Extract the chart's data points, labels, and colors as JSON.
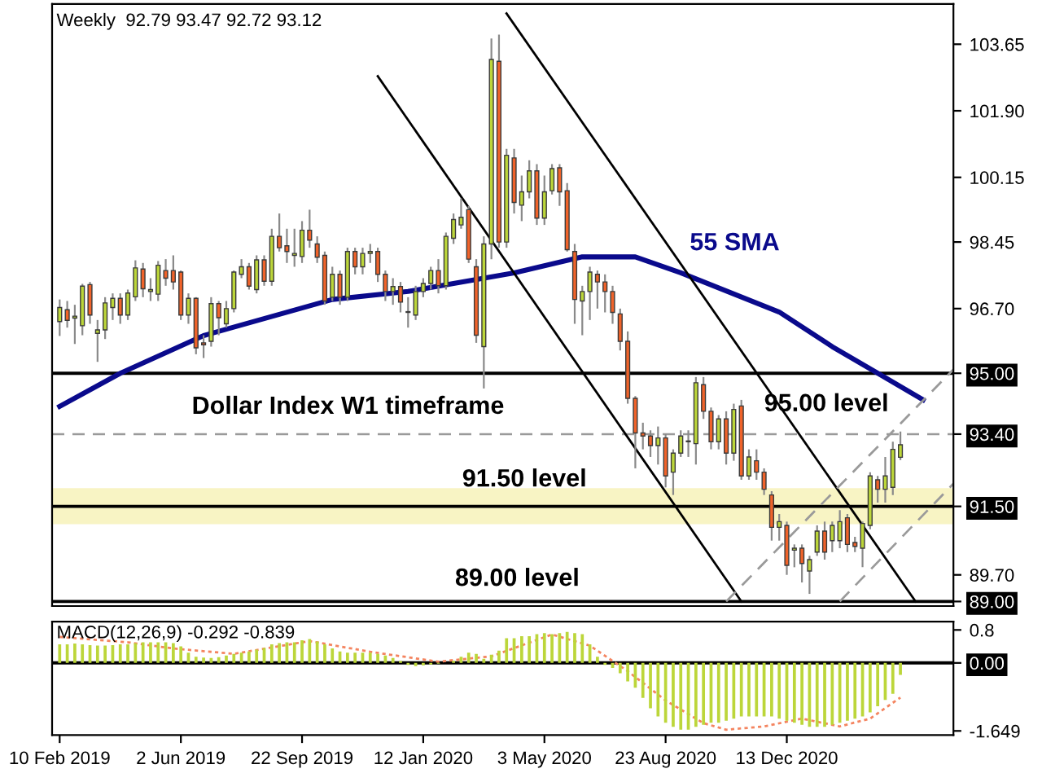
{
  "chart_data": [
    {
      "type": "candlestick",
      "xlim": [
        "2019-02-03",
        "2021-05-16"
      ],
      "ylim": [
        88.88,
        104.71
      ],
      "tick_labels": "y",
      "grid": false,
      "legend": false,
      "x": [
        "2019-02-10",
        "2019-02-17",
        "2019-02-24",
        "2019-03-03",
        "2019-03-10",
        "2019-03-17",
        "2019-03-24",
        "2019-03-31",
        "2019-04-07",
        "2019-04-14",
        "2019-04-21",
        "2019-04-28",
        "2019-05-05",
        "2019-05-12",
        "2019-05-19",
        "2019-05-26",
        "2019-06-02",
        "2019-06-09",
        "2019-06-16",
        "2019-06-23",
        "2019-06-30",
        "2019-07-07",
        "2019-07-14",
        "2019-07-21",
        "2019-07-28",
        "2019-08-04",
        "2019-08-11",
        "2019-08-18",
        "2019-08-25",
        "2019-09-01",
        "2019-09-08",
        "2019-09-15",
        "2019-09-22",
        "2019-09-29",
        "2019-10-06",
        "2019-10-13",
        "2019-10-20",
        "2019-10-27",
        "2019-11-03",
        "2019-11-10",
        "2019-11-17",
        "2019-11-24",
        "2019-12-01",
        "2019-12-08",
        "2019-12-15",
        "2019-12-22",
        "2019-12-29",
        "2020-01-05",
        "2020-01-12",
        "2020-01-19",
        "2020-01-26",
        "2020-02-02",
        "2020-02-09",
        "2020-02-16",
        "2020-02-23",
        "2020-03-01",
        "2020-03-08",
        "2020-03-15",
        "2020-03-22",
        "2020-03-29",
        "2020-04-05",
        "2020-04-12",
        "2020-04-19",
        "2020-04-26",
        "2020-05-03",
        "2020-05-10",
        "2020-05-17",
        "2020-05-24",
        "2020-05-31",
        "2020-06-07",
        "2020-06-14",
        "2020-06-21",
        "2020-06-28",
        "2020-07-05",
        "2020-07-12",
        "2020-07-19",
        "2020-07-26",
        "2020-08-02",
        "2020-08-09",
        "2020-08-16",
        "2020-08-23",
        "2020-08-30",
        "2020-09-06",
        "2020-09-13",
        "2020-09-20",
        "2020-09-27",
        "2020-10-04",
        "2020-10-11",
        "2020-10-18",
        "2020-10-25",
        "2020-11-01",
        "2020-11-08",
        "2020-11-15",
        "2020-11-22",
        "2020-11-29",
        "2020-12-06",
        "2020-12-13",
        "2020-12-20",
        "2020-12-27",
        "2021-01-03",
        "2021-01-10",
        "2021-01-17",
        "2021-01-24",
        "2021-01-31",
        "2021-02-07",
        "2021-02-14",
        "2021-02-21",
        "2021-02-28",
        "2021-03-07",
        "2021-03-14",
        "2021-03-21",
        "2021-03-28"
      ],
      "ohlc": [
        [
          96.36,
          96.94,
          95.98,
          96.73
        ],
        [
          96.67,
          96.9,
          96.2,
          96.39
        ],
        [
          96.45,
          96.8,
          95.77,
          96.5
        ],
        [
          96.25,
          97.35,
          96.0,
          97.29
        ],
        [
          97.33,
          97.4,
          96.3,
          96.53
        ],
        [
          96.05,
          96.4,
          95.3,
          96.14
        ],
        [
          96.14,
          97.0,
          95.9,
          96.85
        ],
        [
          96.73,
          97.1,
          96.4,
          96.97
        ],
        [
          96.97,
          97.1,
          96.3,
          96.53
        ],
        [
          96.53,
          97.2,
          96.4,
          97.11
        ],
        [
          97.01,
          97.97,
          96.9,
          97.77
        ],
        [
          97.74,
          97.9,
          97.0,
          97.22
        ],
        [
          97.15,
          97.5,
          96.9,
          97.2
        ],
        [
          97.08,
          97.95,
          96.9,
          97.84
        ],
        [
          97.7,
          98.0,
          97.3,
          97.5
        ],
        [
          97.7,
          98.1,
          97.2,
          97.4
        ],
        [
          97.66,
          97.7,
          96.4,
          96.53
        ],
        [
          96.53,
          97.1,
          96.3,
          96.97
        ],
        [
          96.97,
          97.0,
          95.5,
          95.67
        ],
        [
          95.8,
          96.0,
          95.4,
          95.75
        ],
        [
          95.84,
          97.0,
          95.7,
          96.83
        ],
        [
          96.83,
          96.9,
          96.0,
          96.46
        ],
        [
          96.3,
          96.9,
          96.2,
          96.7
        ],
        [
          96.7,
          97.7,
          96.6,
          97.66
        ],
        [
          97.6,
          98.0,
          97.5,
          97.8
        ],
        [
          97.8,
          97.9,
          97.2,
          97.29
        ],
        [
          97.2,
          98.1,
          97.1,
          97.98
        ],
        [
          97.98,
          98.1,
          97.3,
          97.42
        ],
        [
          97.42,
          98.8,
          97.3,
          98.6
        ],
        [
          98.6,
          99.2,
          98.2,
          98.3
        ],
        [
          98.35,
          98.8,
          97.9,
          98.2
        ],
        [
          98.1,
          98.8,
          97.8,
          98.15
        ],
        [
          98.07,
          99.0,
          97.9,
          98.76
        ],
        [
          98.76,
          99.3,
          98.3,
          98.5
        ],
        [
          98.4,
          98.6,
          97.9,
          98.05
        ],
        [
          98.1,
          98.2,
          96.8,
          96.9
        ],
        [
          97.0,
          97.8,
          96.9,
          97.6
        ],
        [
          97.6,
          97.7,
          96.8,
          97.0
        ],
        [
          97.0,
          98.3,
          96.9,
          98.2
        ],
        [
          98.2,
          98.3,
          97.6,
          97.8
        ],
        [
          97.8,
          98.3,
          97.6,
          98.15
        ],
        [
          98.15,
          98.4,
          97.9,
          98.2
        ],
        [
          98.2,
          98.3,
          97.4,
          97.6
        ],
        [
          97.6,
          97.7,
          96.9,
          97.15
        ],
        [
          97.15,
          97.5,
          96.8,
          97.28
        ],
        [
          97.28,
          97.4,
          96.6,
          96.87
        ],
        [
          96.6,
          97.0,
          96.2,
          96.62
        ],
        [
          96.53,
          97.3,
          96.4,
          97.15
        ],
        [
          97.15,
          97.5,
          97.0,
          97.36
        ],
        [
          97.36,
          97.8,
          97.2,
          97.7
        ],
        [
          97.7,
          98.0,
          97.1,
          97.3
        ],
        [
          97.3,
          98.7,
          97.2,
          98.6
        ],
        [
          98.55,
          99.2,
          98.4,
          99.04
        ],
        [
          98.9,
          99.6,
          98.8,
          99.1
        ],
        [
          99.3,
          99.4,
          97.9,
          98.0
        ],
        [
          97.8,
          98.0,
          95.8,
          96.0
        ],
        [
          95.7,
          98.6,
          94.6,
          98.4
        ],
        [
          98.4,
          103.8,
          98.0,
          103.25
        ],
        [
          103.2,
          103.9,
          98.3,
          98.45
        ],
        [
          98.45,
          100.9,
          98.3,
          100.73
        ],
        [
          100.66,
          100.9,
          99.2,
          99.49
        ],
        [
          99.42,
          100.2,
          99.0,
          99.77
        ],
        [
          99.77,
          100.6,
          99.6,
          100.32
        ],
        [
          100.32,
          100.5,
          98.9,
          99.08
        ],
        [
          99.08,
          100.2,
          98.9,
          99.77
        ],
        [
          99.8,
          100.5,
          99.7,
          100.38
        ],
        [
          100.4,
          100.5,
          99.4,
          99.77
        ],
        [
          99.8,
          100.0,
          98.2,
          98.25
        ],
        [
          98.2,
          98.4,
          96.3,
          96.94
        ],
        [
          96.9,
          97.3,
          96.0,
          97.15
        ],
        [
          97.15,
          97.8,
          96.4,
          97.66
        ],
        [
          97.6,
          97.7,
          96.7,
          97.4
        ],
        [
          97.4,
          97.6,
          96.6,
          97.15
        ],
        [
          97.15,
          97.3,
          96.3,
          96.6
        ],
        [
          96.56,
          96.7,
          95.6,
          95.84
        ],
        [
          95.84,
          96.1,
          94.2,
          94.34
        ],
        [
          94.34,
          94.4,
          92.5,
          93.43
        ],
        [
          93.43,
          93.7,
          93.0,
          93.35
        ],
        [
          93.35,
          93.5,
          92.8,
          93.1
        ],
        [
          93.1,
          93.6,
          92.6,
          93.3
        ],
        [
          93.3,
          93.4,
          92.0,
          92.3
        ],
        [
          92.4,
          93.0,
          91.8,
          92.9
        ],
        [
          92.9,
          93.5,
          92.8,
          93.35
        ],
        [
          93.2,
          93.5,
          92.8,
          93.22
        ],
        [
          93.15,
          94.9,
          92.6,
          94.75
        ],
        [
          94.7,
          94.9,
          93.8,
          94.0
        ],
        [
          94.0,
          94.1,
          93.0,
          93.2
        ],
        [
          93.2,
          93.9,
          93.0,
          93.8
        ],
        [
          93.8,
          94.0,
          92.6,
          92.9
        ],
        [
          92.9,
          94.2,
          92.7,
          94.05
        ],
        [
          94.14,
          94.3,
          92.2,
          92.3
        ],
        [
          92.3,
          93.0,
          92.2,
          92.8
        ],
        [
          92.7,
          93.0,
          92.2,
          92.4
        ],
        [
          92.4,
          92.5,
          91.8,
          91.95
        ],
        [
          91.8,
          91.9,
          90.6,
          90.95
        ],
        [
          90.95,
          91.3,
          90.6,
          91.1
        ],
        [
          91.0,
          91.1,
          89.7,
          89.95
        ],
        [
          90.35,
          90.5,
          89.9,
          90.4
        ],
        [
          90.4,
          90.5,
          89.5,
          90.0
        ],
        [
          89.8,
          90.2,
          89.2,
          90.1
        ],
        [
          90.3,
          91.0,
          90.2,
          90.85
        ],
        [
          90.85,
          91.1,
          90.1,
          90.3
        ],
        [
          90.6,
          91.1,
          90.3,
          91.0
        ],
        [
          90.6,
          91.4,
          90.4,
          91.1
        ],
        [
          91.2,
          91.3,
          90.3,
          90.5
        ],
        [
          90.55,
          90.7,
          90.3,
          90.45
        ],
        [
          90.4,
          91.1,
          89.9,
          91.05
        ],
        [
          91.0,
          92.4,
          90.9,
          92.3
        ],
        [
          92.2,
          92.3,
          91.6,
          91.95
        ],
        [
          91.95,
          92.8,
          91.6,
          92.3
        ],
        [
          92.0,
          93.2,
          91.8,
          93.0
        ],
        [
          92.79,
          93.47,
          92.72,
          93.12
        ]
      ],
      "colors": [
        "#bcd63a",
        "#f0632a",
        "#bcd63a",
        "#bcd63a",
        "#f0632a",
        "#bcd63a",
        "#bcd63a",
        "#bcd63a",
        "#f0632a",
        "#bcd63a",
        "#bcd63a",
        "#f0632a",
        "#bcd63a",
        "#bcd63a",
        "#f0632a",
        "#f0632a",
        "#f0632a",
        "#bcd63a",
        "#f0632a",
        "#f0632a",
        "#bcd63a",
        "#f0632a",
        "#bcd63a",
        "#bcd63a",
        "#bcd63a",
        "#f0632a",
        "#bcd63a",
        "#f0632a",
        "#bcd63a",
        "#f0632a",
        "#f0632a",
        "#bcd63a",
        "#bcd63a",
        "#f0632a",
        "#f0632a",
        "#f0632a",
        "#bcd63a",
        "#f0632a",
        "#bcd63a",
        "#f0632a",
        "#bcd63a",
        "#bcd63a",
        "#f0632a",
        "#f0632a",
        "#bcd63a",
        "#f0632a",
        "#bcd63a",
        "#bcd63a",
        "#bcd63a",
        "#bcd63a",
        "#f0632a",
        "#bcd63a",
        "#bcd63a",
        "#bcd63a",
        "#f0632a",
        "#f0632a",
        "#bcd63a",
        "#bcd63a",
        "#f0632a",
        "#bcd63a",
        "#f0632a",
        "#bcd63a",
        "#bcd63a",
        "#f0632a",
        "#bcd63a",
        "#bcd63a",
        "#f0632a",
        "#f0632a",
        "#f0632a",
        "#bcd63a",
        "#bcd63a",
        "#f0632a",
        "#f0632a",
        "#f0632a",
        "#f0632a",
        "#f0632a",
        "#f0632a",
        "#f0632a",
        "#f0632a",
        "#bcd63a",
        "#f0632a",
        "#bcd63a",
        "#bcd63a",
        "#bcd63a",
        "#bcd63a",
        "#f0632a",
        "#f0632a",
        "#bcd63a",
        "#f0632a",
        "#bcd63a",
        "#f0632a",
        "#bcd63a",
        "#f0632a",
        "#f0632a",
        "#f0632a",
        "#bcd63a",
        "#f0632a",
        "#bcd63a",
        "#f0632a",
        "#bcd63a",
        "#bcd63a",
        "#f0632a",
        "#bcd63a",
        "#bcd63a",
        "#f0632a",
        "#f0632a",
        "#bcd63a",
        "#bcd63a",
        "#f0632a",
        "#bcd63a",
        "#bcd63a",
        "#bcd63a"
      ],
      "series": [
        {
          "type": "line",
          "name": "55 SMA",
          "color": "#0a0a8c",
          "x": [
            "2019-02-10",
            "2019-04-07",
            "2019-06-23",
            "2019-10-20",
            "2019-12-29",
            "2020-02-09",
            "2020-04-05",
            "2020-06-07",
            "2020-07-26",
            "2020-09-06",
            "2020-12-06",
            "2021-01-24",
            "2021-03-07",
            "2021-04-18"
          ],
          "values": [
            94.13,
            95.0,
            95.99,
            96.94,
            97.15,
            97.36,
            97.64,
            98.06,
            98.06,
            97.64,
            96.61,
            95.7,
            95.0,
            94.3
          ]
        },
        {
          "type": "line",
          "color": "#000000",
          "line_style": "solid",
          "x": [
            "2019-12-01",
            "2020-11-01"
          ],
          "values": [
            102.81,
            89.0
          ]
        },
        {
          "type": "line",
          "color": "#000000",
          "line_style": "solid",
          "x": [
            "2020-03-29",
            "2021-04-11"
          ],
          "values": [
            104.46,
            89.0
          ]
        },
        {
          "type": "line",
          "color": "#9a9a9a",
          "line_style": "dashed",
          "x": [
            "2020-10-18",
            "2021-05-16"
          ],
          "values": [
            89.0,
            95.1
          ]
        },
        {
          "type": "line",
          "color": "#9a9a9a",
          "line_style": "dashed",
          "x": [
            "2021-01-31",
            "2021-05-16"
          ],
          "values": [
            89.0,
            92.1
          ]
        }
      ],
      "ref_lines": [
        {
          "axis": "y",
          "value": 95.0,
          "label": "95.00 level",
          "color": "#000000",
          "line_style": "solid"
        },
        {
          "axis": "y",
          "value": 93.4,
          "color": "#9a9a9a",
          "line_style": "dashed"
        },
        {
          "axis": "y",
          "value": 91.5,
          "label": "91.50 level",
          "color": "#000000",
          "line_style": "solid"
        },
        {
          "axis": "y",
          "value": 89.0,
          "label": "89.00 level",
          "color": "#000000",
          "line_style": "solid"
        }
      ],
      "bands": [
        {
          "axis": "y",
          "from": 91.03,
          "to": 91.98,
          "color": "#f8f4c4"
        }
      ],
      "yticks": [
        103.65,
        {
          "value": 101.9,
          "label": "101.90"
        },
        100.15,
        98.45,
        {
          "value": 96.7,
          "label": "96.70"
        },
        {
          "value": 95.0,
          "label": "95.00"
        },
        {
          "value": 93.4,
          "label": "93.40"
        },
        {
          "value": 91.5,
          "label": "91.50"
        },
        {
          "value": 89.7,
          "label": "89.70"
        },
        {
          "value": 89.0,
          "label": "89.00"
        }
      ],
      "annotations": [
        "Weekly  92.79 93.47 92.72 93.12",
        "Dollar Index W1 timeframe"
      ]
    },
    {
      "type": "bar",
      "xlim": [
        "2019-02-03",
        "2021-05-16"
      ],
      "ylim": [
        -1.75,
        1.0
      ],
      "grid": false,
      "legend": false,
      "x": [
        "2019-02-10",
        "2019-02-17",
        "2019-02-24",
        "2019-03-03",
        "2019-03-10",
        "2019-03-17",
        "2019-03-24",
        "2019-03-31",
        "2019-04-07",
        "2019-04-14",
        "2019-04-21",
        "2019-04-28",
        "2019-05-05",
        "2019-05-12",
        "2019-05-19",
        "2019-05-26",
        "2019-06-02",
        "2019-06-09",
        "2019-06-16",
        "2019-06-23",
        "2019-06-30",
        "2019-07-07",
        "2019-07-14",
        "2019-07-21",
        "2019-07-28",
        "2019-08-04",
        "2019-08-11",
        "2019-08-18",
        "2019-08-25",
        "2019-09-01",
        "2019-09-08",
        "2019-09-15",
        "2019-09-22",
        "2019-09-29",
        "2019-10-06",
        "2019-10-13",
        "2019-10-20",
        "2019-10-27",
        "2019-11-03",
        "2019-11-10",
        "2019-11-17",
        "2019-11-24",
        "2019-12-01",
        "2019-12-08",
        "2019-12-15",
        "2019-12-22",
        "2019-12-29",
        "2020-01-05",
        "2020-01-12",
        "2020-01-19",
        "2020-01-26",
        "2020-02-02",
        "2020-02-09",
        "2020-02-16",
        "2020-02-23",
        "2020-03-01",
        "2020-03-08",
        "2020-03-15",
        "2020-03-22",
        "2020-03-29",
        "2020-04-05",
        "2020-04-12",
        "2020-04-19",
        "2020-04-26",
        "2020-05-03",
        "2020-05-10",
        "2020-05-17",
        "2020-05-24",
        "2020-05-31",
        "2020-06-07",
        "2020-06-14",
        "2020-06-21",
        "2020-06-28",
        "2020-07-05",
        "2020-07-12",
        "2020-07-19",
        "2020-07-26",
        "2020-08-02",
        "2020-08-09",
        "2020-08-16",
        "2020-08-23",
        "2020-08-30",
        "2020-09-06",
        "2020-09-13",
        "2020-09-20",
        "2020-09-27",
        "2020-10-04",
        "2020-10-11",
        "2020-10-18",
        "2020-10-25",
        "2020-11-01",
        "2020-11-08",
        "2020-11-15",
        "2020-11-22",
        "2020-11-29",
        "2020-12-06",
        "2020-12-13",
        "2020-12-20",
        "2020-12-27",
        "2021-01-03",
        "2021-01-10",
        "2021-01-17",
        "2021-01-24",
        "2021-01-31",
        "2021-02-07",
        "2021-02-14",
        "2021-02-21",
        "2021-02-28",
        "2021-03-07",
        "2021-03-14",
        "2021-03-21",
        "2021-03-28"
      ],
      "series": [
        {
          "type": "bar",
          "color": "#bcd63a",
          "values": [
            0.45,
            0.45,
            0.47,
            0.45,
            0.43,
            0.42,
            0.42,
            0.43,
            0.45,
            0.45,
            0.48,
            0.5,
            0.5,
            0.5,
            0.5,
            0.48,
            0.4,
            0.25,
            0.15,
            0.13,
            0.12,
            0.14,
            0.18,
            0.22,
            0.25,
            0.28,
            0.32,
            0.36,
            0.45,
            0.48,
            0.5,
            0.5,
            0.55,
            0.58,
            0.52,
            0.45,
            0.35,
            0.28,
            0.25,
            0.25,
            0.25,
            0.25,
            0.22,
            0.18,
            0.12,
            0.05,
            -0.05,
            -0.08,
            -0.06,
            -0.04,
            -0.02,
            0.0,
            0.05,
            0.15,
            0.25,
            0.22,
            0.1,
            0.2,
            0.3,
            0.6,
            0.6,
            0.65,
            0.65,
            0.7,
            0.72,
            0.7,
            0.72,
            0.75,
            0.72,
            0.7,
            0.45,
            0.15,
            -0.05,
            -0.12,
            -0.25,
            -0.45,
            -0.6,
            -0.85,
            -1.1,
            -1.3,
            -1.45,
            -1.55,
            -1.62,
            -1.62,
            -1.55,
            -1.5,
            -1.45,
            -1.45,
            -1.4,
            -1.35,
            -1.3,
            -1.3,
            -1.3,
            -1.3,
            -1.3,
            -1.35,
            -1.4,
            -1.45,
            -1.5,
            -1.55,
            -1.55,
            -1.55,
            -1.5,
            -1.45,
            -1.4,
            -1.35,
            -1.3,
            -1.2,
            -1.05,
            -0.9,
            -0.75,
            -0.292
          ]
        },
        {
          "type": "line",
          "color": "#f4845f",
          "line_style": "dotted",
          "x": [
            "2019-02-10",
            "2019-04-14",
            "2019-05-26",
            "2019-07-21",
            "2019-09-29",
            "2019-11-24",
            "2020-01-26",
            "2020-03-15",
            "2020-05-10",
            "2020-06-14",
            "2020-07-19",
            "2020-08-23",
            "2020-09-27",
            "2020-10-18",
            "2020-11-22",
            "2020-12-27",
            "2021-01-31",
            "2021-02-28",
            "2021-03-28"
          ],
          "values": [
            0.63,
            0.5,
            0.35,
            0.22,
            0.53,
            0.27,
            0.03,
            0.16,
            0.69,
            0.42,
            -0.2,
            -0.91,
            -1.46,
            -1.62,
            -1.54,
            -1.35,
            -1.54,
            -1.35,
            -0.839
          ]
        }
      ],
      "ref_lines": [
        {
          "axis": "y",
          "value": 0,
          "color": "#000000",
          "line_style": "solid"
        }
      ],
      "yticks": [
        0.8,
        {
          "value": 0,
          "label": "0.00"
        },
        -1.649
      ],
      "xticks": [
        {
          "value": "2019-02-10",
          "label": "10 Feb 2019"
        },
        {
          "value": "2019-06-02",
          "label": "2 Jun 2019"
        },
        {
          "value": "2019-09-22",
          "label": "22 Sep 2019"
        },
        {
          "value": "2020-01-12",
          "label": "12 Jan 2020"
        },
        {
          "value": "2020-05-03",
          "label": "3 May 2020"
        },
        {
          "value": "2020-08-23",
          "label": "23 Aug 2020"
        },
        {
          "value": "2020-12-13",
          "label": "13 Dec 2020"
        }
      ],
      "annotations": [
        "MACD(12,26,9) -0.292 -0.839"
      ]
    }
  ]
}
